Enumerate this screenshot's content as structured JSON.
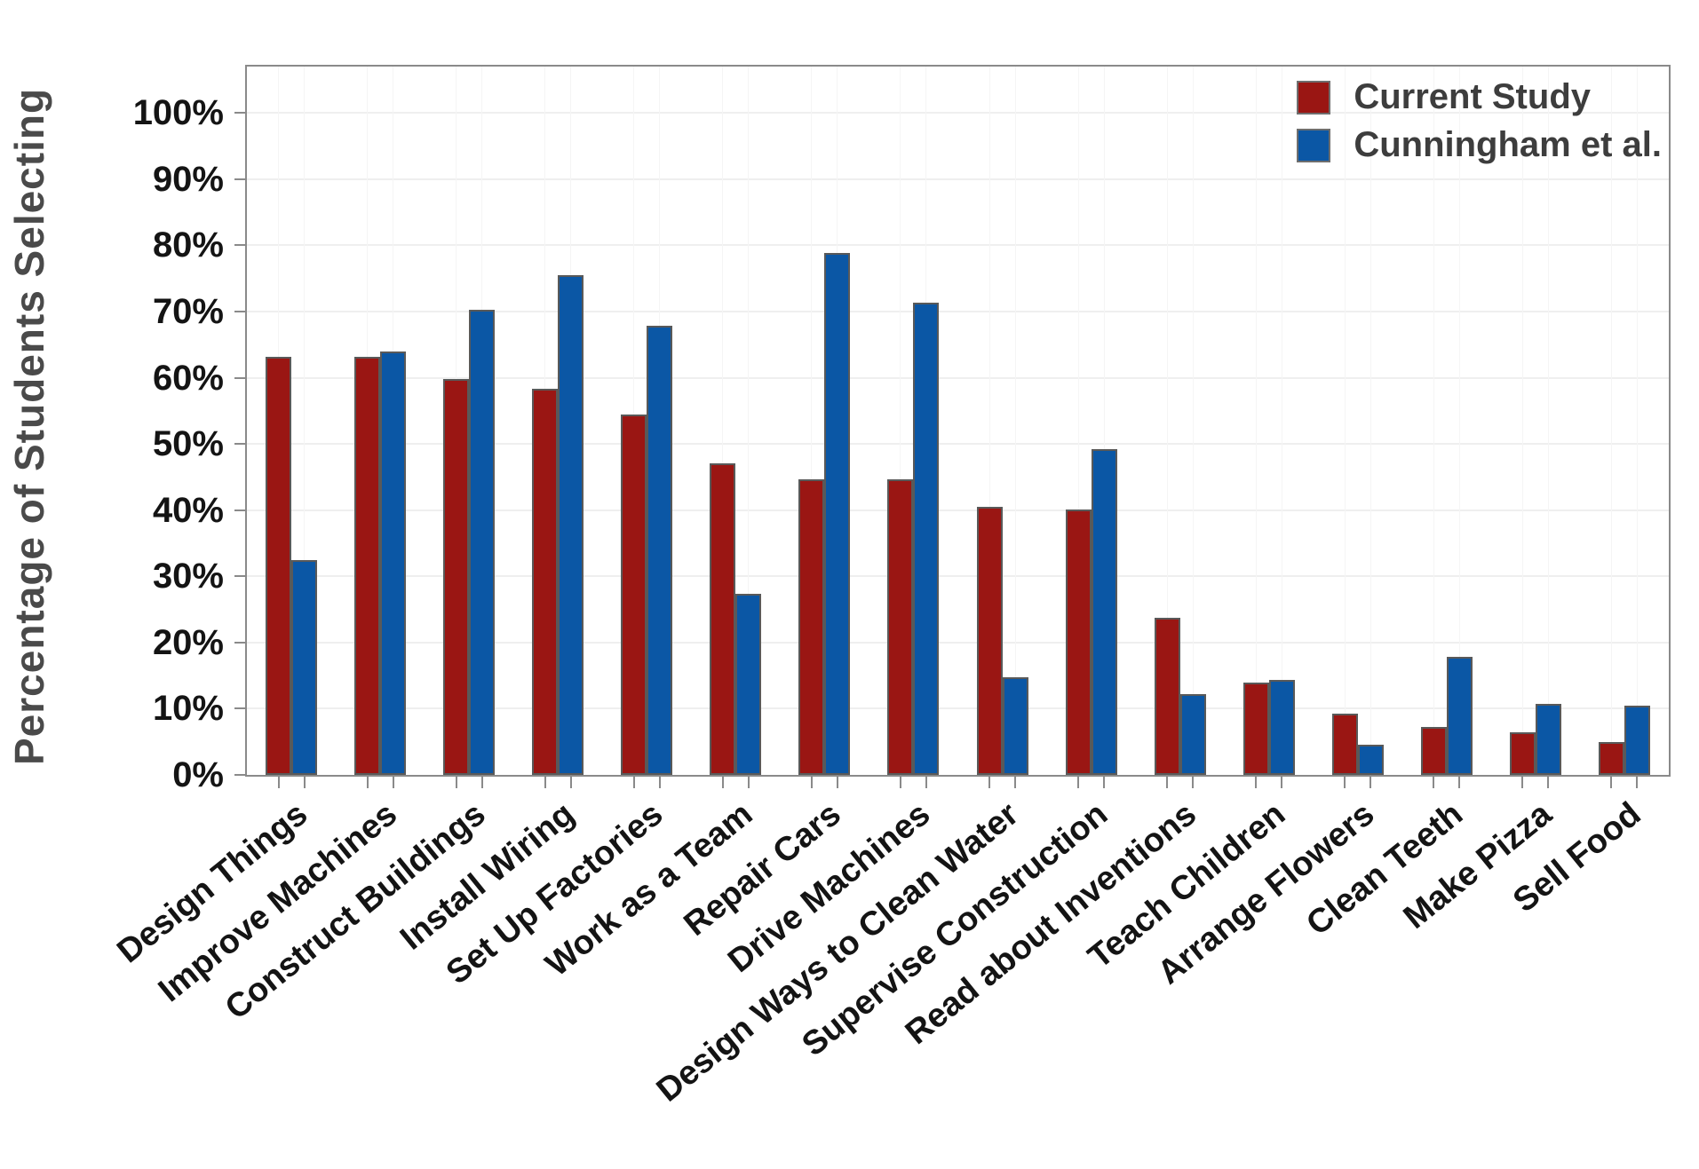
{
  "chart_data": {
    "type": "bar",
    "ylabel": "Percentage of Students Selecting",
    "xlabel": "",
    "ylim": [
      0,
      100
    ],
    "ytick_step": 10,
    "ytick_suffix": "%",
    "grid": true,
    "legend_position": "top-right",
    "categories": [
      "Design Things",
      "Improve Machines",
      "Construct Buildings",
      "Install Wiring",
      "Set Up Factories",
      "Work as a Team",
      "Repair Cars",
      "Drive Machines",
      "Design Ways to Clean Water",
      "Supervise Construction",
      "Read about Inventions",
      "Teach Children",
      "Arrange Flowers",
      "Clean Teeth",
      "Make Pizza",
      "Sell Food"
    ],
    "series": [
      {
        "name": "Current Study",
        "color": "#9a1613",
        "values": [
          63.2,
          63.2,
          59.8,
          58.3,
          54.5,
          47.1,
          44.6,
          44.6,
          40.5,
          40.1,
          23.7,
          13.9,
          9.3,
          7.3,
          6.5,
          5.0
        ]
      },
      {
        "name": "Cunningham et al.",
        "color": "#0b57a5",
        "values": [
          32.4,
          64.0,
          70.2,
          75.5,
          67.8,
          27.3,
          78.8,
          71.4,
          14.7,
          49.2,
          12.2,
          14.3,
          4.6,
          17.8,
          10.7,
          10.4
        ]
      }
    ],
    "colors": {
      "bar_border": "#595959",
      "axis": "#8a8a8a",
      "gridline_h": "#efefef",
      "gridline_v": "#f5f5f5",
      "tick_text": "#141414",
      "legend_text": "#3d3d3d",
      "y_title_text": "#4a4a4a"
    }
  }
}
